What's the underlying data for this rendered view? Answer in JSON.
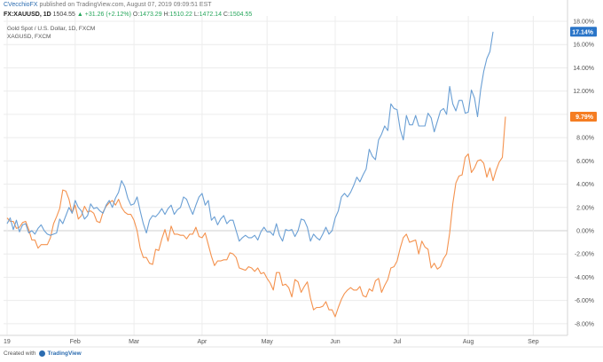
{
  "header": {
    "author": "CVecchioFX",
    "published_text": "published on TradingView.com, August 07, 2019 09:09:51 EST",
    "symbol": "FX:XAUUSD, 1D",
    "last": "1504.55",
    "change": "▲ +31.26 (+2.12%)",
    "o_label": "O:",
    "o": "1473.29",
    "h_label": "H:",
    "h": "1510.22",
    "l_label": "L:",
    "l": "1472.14",
    "c_label": "C:",
    "c": "1504.55"
  },
  "legend": {
    "line1": "Gold Spot / U.S. Dollar, 1D, FXCM",
    "line2": "XAGUSD, FXCM"
  },
  "footer": {
    "created_with": "Created with",
    "brand": "TradingView"
  },
  "colors": {
    "gold": "#6a9fd4",
    "silver": "#f4924e",
    "gold_badge": "#2a75c8",
    "silver_badge": "#f57d22",
    "grid": "#ececec",
    "zero_line": "#cfcfcf"
  },
  "chart_data": {
    "type": "line",
    "title": "",
    "y_unit": "%",
    "ylim": [
      -9,
      18.5
    ],
    "yticks": [
      "18.00%",
      "16.00%",
      "14.00%",
      "12.00%",
      "10.00%",
      "8.00%",
      "6.00%",
      "4.00%",
      "2.00%",
      "0.00%",
      "-2.00%",
      "-4.00%",
      "-6.00%",
      "-8.00%"
    ],
    "ytick_values": [
      18,
      16,
      14,
      12,
      10,
      8,
      6,
      4,
      2,
      0,
      -2,
      -4,
      -6,
      -8
    ],
    "xticks": [
      "19",
      "Feb",
      "Mar",
      "Apr",
      "May",
      "Jun",
      "Jul",
      "Aug",
      "Sep"
    ],
    "xtick_positions": [
      0,
      22,
      41,
      63,
      84,
      106,
      126,
      149,
      170
    ],
    "x_range": [
      0,
      183
    ],
    "last_values": {
      "gold": "17.14%",
      "silver": "9.79%"
    },
    "series": [
      {
        "key": "gold",
        "name": "XAUUSD",
        "values": [
          0.6,
          1.1,
          0.1,
          0.9,
          -0.1,
          0.5,
          0.6,
          -0.2,
          0.0,
          -0.3,
          0.2,
          0.5,
          0.0,
          -0.3,
          -0.4,
          -0.3,
          -0.2,
          1.0,
          0.6,
          1.3,
          2.0,
          1.5,
          2.6,
          2.0,
          1.7,
          1.0,
          1.3,
          2.3,
          1.9,
          2.0,
          1.7,
          1.5,
          2.2,
          2.6,
          2.0,
          2.8,
          3.3,
          4.3,
          3.8,
          2.8,
          2.2,
          2.3,
          2.9,
          1.7,
          0.6,
          -0.2,
          0.9,
          1.3,
          1.2,
          1.5,
          1.9,
          1.4,
          1.9,
          2.2,
          1.4,
          1.8,
          2.0,
          2.9,
          2.7,
          2.0,
          1.4,
          2.2,
          2.9,
          3.2,
          2.2,
          2.6,
          0.9,
          1.2,
          0.5,
          1.0,
          1.3,
          0.6,
          0.9,
          0.9,
          0.0,
          -0.9,
          -0.6,
          -0.4,
          -0.6,
          -0.6,
          -0.4,
          -0.8,
          -0.1,
          0.3,
          -0.1,
          -0.1,
          -0.4,
          0.6,
          -0.4,
          -0.9,
          0.1,
          0.0,
          0.1,
          -0.5,
          0.0,
          1.0,
          0.9,
          0.3,
          -0.9,
          -0.3,
          -0.6,
          -0.8,
          -0.3,
          0.3,
          -0.3,
          0.0,
          1.1,
          1.7,
          2.9,
          3.2,
          2.9,
          3.3,
          3.9,
          4.6,
          4.2,
          4.8,
          5.3,
          7.0,
          6.4,
          6.1,
          7.8,
          8.3,
          9.0,
          8.6,
          10.9,
          10.5,
          10.4,
          8.7,
          7.8,
          9.9,
          9.1,
          9.1,
          9.9,
          9.0,
          9.0,
          9.0,
          10.1,
          9.7,
          8.5,
          9.4,
          10.3,
          10.5,
          10.0,
          12.4,
          10.9,
          10.3,
          11.2,
          11.2,
          10.1,
          10.2,
          12.1,
          11.4,
          9.8,
          12.1,
          13.7,
          14.8,
          15.4,
          17.1
        ]
      },
      {
        "key": "silver",
        "name": "XAGUSD",
        "values": [
          1.1,
          0.8,
          0.8,
          0.2,
          0.3,
          0.7,
          0.8,
          0.1,
          -0.8,
          -0.8,
          -1.5,
          -1.2,
          -1.2,
          -1.2,
          -0.6,
          0.6,
          1.2,
          1.9,
          3.5,
          3.4,
          2.7,
          1.5,
          2.2,
          1.0,
          1.3,
          2.1,
          1.6,
          1.7,
          1.5,
          0.8,
          0.7,
          1.6,
          2.1,
          2.4,
          2.6,
          2.2,
          2.7,
          2.0,
          1.6,
          1.4,
          1.4,
          0.9,
          0.0,
          -1.5,
          -2.3,
          -2.3,
          -2.8,
          -2.9,
          -1.6,
          -1.7,
          -0.7,
          0.1,
          -0.9,
          0.4,
          -0.3,
          -0.3,
          -0.4,
          -0.4,
          -0.7,
          -0.3,
          -0.3,
          0.3,
          -0.5,
          -0.6,
          -0.2,
          -1.2,
          -2.2,
          -3.0,
          -2.6,
          -2.6,
          -2.5,
          -2.5,
          -1.9,
          -2.0,
          -2.3,
          -3.2,
          -3.3,
          -3.4,
          -3.1,
          -3.2,
          -3.5,
          -3.2,
          -3.7,
          -3.6,
          -4.1,
          -4.5,
          -5.1,
          -3.6,
          -3.6,
          -4.7,
          -4.6,
          -4.9,
          -5.7,
          -4.2,
          -4.4,
          -5.3,
          -4.8,
          -4.4,
          -5.8,
          -6.8,
          -6.6,
          -6.6,
          -6.5,
          -6.1,
          -6.8,
          -6.8,
          -7.4,
          -6.6,
          -5.9,
          -5.4,
          -5.1,
          -4.9,
          -5.1,
          -5.1,
          -4.8,
          -5.6,
          -5.7,
          -5.0,
          -5.2,
          -4.3,
          -4.1,
          -5.3,
          -4.7,
          -4.2,
          -3.2,
          -3.1,
          -2.6,
          -1.5,
          -0.6,
          -0.3,
          -1.0,
          -0.9,
          -0.8,
          -2.0,
          -0.9,
          -1.4,
          -1.6,
          -3.2,
          -2.8,
          -3.3,
          -3.1,
          -2.4,
          -2.0,
          -0.2,
          2.3,
          4.1,
          4.7,
          4.8,
          6.3,
          6.6,
          5.0,
          5.4,
          6.0,
          6.1,
          5.8,
          4.6,
          5.4,
          4.3,
          5.2,
          5.9,
          6.3,
          9.8
        ]
      }
    ],
    "grid": true,
    "legend_position": "top-left"
  }
}
